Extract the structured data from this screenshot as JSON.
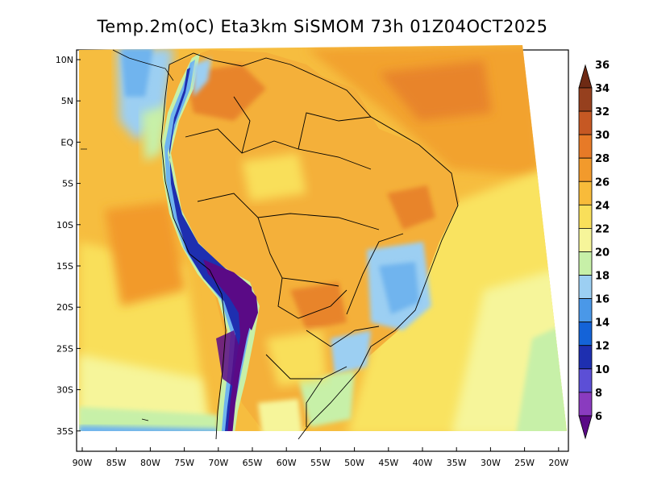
{
  "title": "Temp.2m(oC) Eta3km SiSMOM 73h 01Z04OCT2025",
  "lat_ticks": [
    "10N",
    "5N",
    "EQ",
    "5S",
    "10S",
    "15S",
    "20S",
    "25S",
    "30S",
    "35S"
  ],
  "lon_ticks": [
    "90W",
    "85W",
    "80W",
    "75W",
    "70W",
    "65W",
    "60W",
    "55W",
    "50W",
    "45W",
    "40W",
    "35W",
    "30W",
    "25W",
    "20W"
  ],
  "colorbar": {
    "labels": [
      "6",
      "8",
      "10",
      "12",
      "14",
      "16",
      "18",
      "20",
      "22",
      "24",
      "26",
      "28",
      "30",
      "32",
      "34",
      "36"
    ],
    "colors": [
      "#5a0a86",
      "#8a3bbf",
      "#5c4fd6",
      "#1e2fb0",
      "#1463d8",
      "#4a98e8",
      "#9ccff2",
      "#c7f0a8",
      "#f6f59a",
      "#f9df5a",
      "#f8bb3a",
      "#f29a2c",
      "#e77a27",
      "#c65823",
      "#96401e",
      "#6e2a14"
    ]
  }
}
